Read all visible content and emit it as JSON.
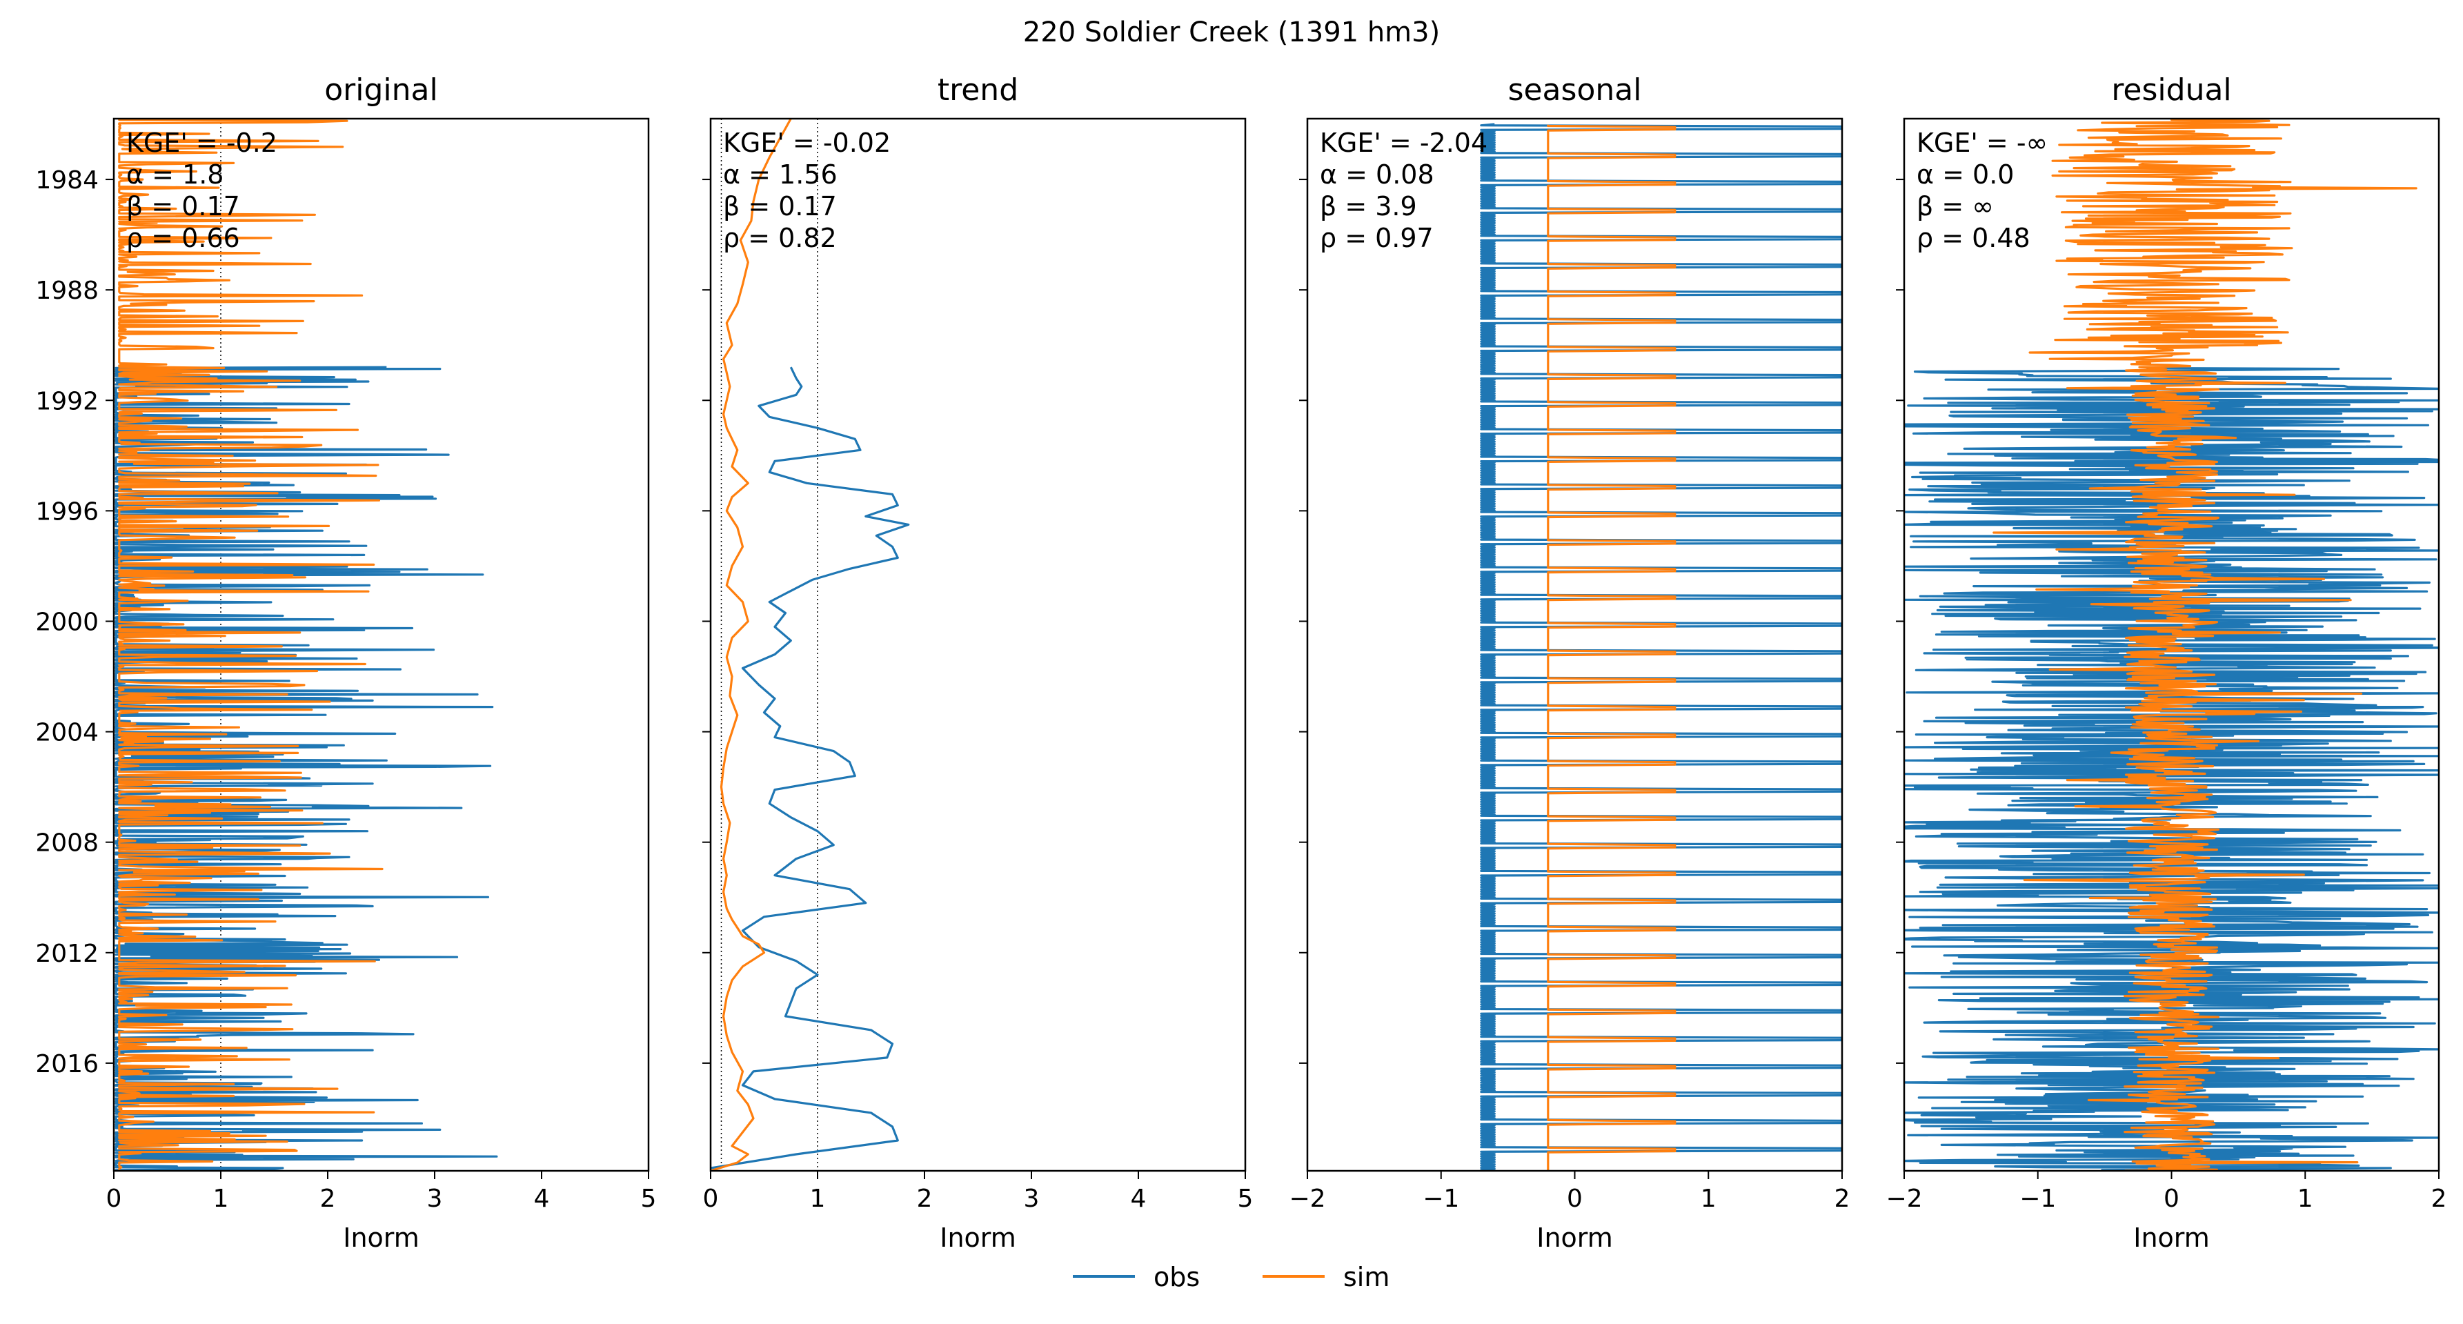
{
  "figure": {
    "suptitle": "220  Soldier Creek (1391 hm3)",
    "legend": {
      "placement": "bottom-center",
      "entries": [
        {
          "name": "obs",
          "color": "#1f77b4"
        },
        {
          "name": "sim",
          "color": "#ff7f0e"
        }
      ]
    }
  },
  "chart_data": [
    {
      "type": "line",
      "title": "original",
      "xlabel": "Inorm",
      "ylabel": "",
      "xlim": [
        0,
        5
      ],
      "xticks": [
        "0",
        "1",
        "2",
        "3",
        "4",
        "5"
      ],
      "ylim": [
        1981.8,
        2019.9
      ],
      "yticks": [
        "1984",
        "1988",
        "1992",
        "1996",
        "2000",
        "2004",
        "2008",
        "2012",
        "2016"
      ],
      "show_yticklabels": true,
      "reference_lines_x": [
        0,
        1
      ],
      "metrics": [
        "KGE' = -0.2",
        "α = 1.8",
        "β = 0.17",
        "ρ = 0.66"
      ],
      "series": []
    },
    {
      "type": "line",
      "title": "trend",
      "xlabel": "Inorm",
      "ylabel": "",
      "xlim": [
        0,
        5
      ],
      "xticks": [
        "0",
        "1",
        "2",
        "3",
        "4",
        "5"
      ],
      "ylim": [
        1981.8,
        2019.9
      ],
      "yticks": [
        "1984",
        "1988",
        "1992",
        "1996",
        "2000",
        "2004",
        "2008",
        "2012",
        "2016"
      ],
      "show_yticklabels": false,
      "reference_lines_x": [
        0,
        0.1,
        1
      ],
      "metrics": [
        "KGE' = -0.02",
        "α = 1.56",
        "β = 0.17",
        "ρ = 0.82"
      ],
      "series": [
        {
          "color": "#1f77b4",
          "x": [
            0.75,
            0.8,
            0.85,
            0.8,
            0.45,
            0.55,
            1.0,
            1.35,
            1.4,
            0.6,
            0.55,
            0.9,
            1.7,
            1.75,
            1.45,
            1.85,
            1.55,
            1.7,
            1.75,
            1.3,
            0.95,
            0.75,
            0.55,
            0.7,
            0.6,
            0.75,
            0.6,
            0.3,
            0.45,
            0.6,
            0.5,
            0.65,
            0.6,
            1.15,
            1.3,
            1.35,
            0.6,
            0.55,
            0.75,
            1.0,
            1.15,
            0.8,
            0.6,
            1.3,
            1.45,
            0.5,
            0.3,
            0.45,
            0.8,
            1.0,
            0.8,
            0.75,
            0.7,
            1.5,
            1.7,
            1.65,
            0.4,
            0.3,
            0.6,
            1.5,
            1.7,
            1.75,
            0.8,
            0.0
          ],
          "y": [
            1990.8,
            1991.2,
            1991.5,
            1991.8,
            1992.2,
            1992.6,
            1993.0,
            1993.4,
            1993.8,
            1994.2,
            1994.6,
            1995.0,
            1995.4,
            1995.8,
            1996.2,
            1996.5,
            1996.9,
            1997.3,
            1997.7,
            1998.1,
            1998.5,
            1998.9,
            1999.3,
            1999.7,
            2000.2,
            2000.7,
            2001.2,
            2001.7,
            2002.3,
            2002.8,
            2003.3,
            2003.8,
            2004.2,
            2004.7,
            2005.1,
            2005.6,
            2006.1,
            2006.6,
            2007.1,
            2007.6,
            2008.1,
            2008.6,
            2009.2,
            2009.7,
            2010.2,
            2010.7,
            2011.2,
            2011.8,
            2012.3,
            2012.8,
            2013.3,
            2013.8,
            2014.3,
            2014.8,
            2015.3,
            2015.8,
            2016.3,
            2016.8,
            2017.3,
            2017.8,
            2018.3,
            2018.8,
            2019.3,
            2019.8
          ]
        },
        {
          "color": "#ff7f0e",
          "x": [
            0.75,
            0.65,
            0.55,
            0.45,
            0.4,
            0.38,
            0.28,
            0.35,
            0.3,
            0.25,
            0.15,
            0.2,
            0.12,
            0.15,
            0.18,
            0.15,
            0.12,
            0.15,
            0.2,
            0.25,
            0.2,
            0.35,
            0.2,
            0.15,
            0.25,
            0.3,
            0.2,
            0.15,
            0.3,
            0.35,
            0.2,
            0.15,
            0.2,
            0.18,
            0.25,
            0.2,
            0.15,
            0.12,
            0.1,
            0.12,
            0.18,
            0.15,
            0.12,
            0.15,
            0.12,
            0.15,
            0.2,
            0.25,
            0.3,
            0.45,
            0.5,
            0.3,
            0.2,
            0.15,
            0.12,
            0.15,
            0.2,
            0.3,
            0.25,
            0.35,
            0.4,
            0.3,
            0.2,
            0.35,
            0.25,
            0.0
          ],
          "y": [
            1981.8,
            1982.5,
            1983.2,
            1984.0,
            1984.8,
            1985.5,
            1986.2,
            1987.0,
            1987.8,
            1988.5,
            1989.2,
            1990.0,
            1990.5,
            1991.0,
            1991.5,
            1992.0,
            1992.5,
            1993.0,
            1993.4,
            1993.8,
            1994.4,
            1995.0,
            1995.5,
            1996.0,
            1996.6,
            1997.3,
            1998.0,
            1998.7,
            1999.3,
            2000.0,
            2000.6,
            2001.3,
            2002.0,
            2002.7,
            2003.4,
            2004.0,
            2004.6,
            2005.3,
            2006.0,
            2006.6,
            2007.3,
            2008.0,
            2008.6,
            2009.2,
            2009.8,
            2010.4,
            2010.8,
            2011.1,
            2011.4,
            2011.7,
            2012.0,
            2012.5,
            2013.0,
            2013.6,
            2014.3,
            2015.0,
            2015.6,
            2016.3,
            2017.0,
            2017.5,
            2018.0,
            2018.5,
            2019.0,
            2019.3,
            2019.6,
            2019.9
          ]
        }
      ]
    },
    {
      "type": "line",
      "title": "seasonal",
      "xlabel": "Inorm",
      "ylabel": "",
      "xlim": [
        -2,
        2
      ],
      "xticks": [
        "−2",
        "−1",
        "0",
        "1",
        "2"
      ],
      "ylim": [
        1981.8,
        2019.9
      ],
      "yticks": [
        "1984",
        "1988",
        "1992",
        "1996",
        "2000",
        "2004",
        "2008",
        "2012",
        "2016"
      ],
      "show_yticklabels": false,
      "reference_lines_x": [],
      "metrics": [
        "KGE' = -2.04",
        "α = 0.08",
        "β = 3.9",
        "ρ = 0.97"
      ],
      "series": []
    },
    {
      "type": "line",
      "title": "residual",
      "xlabel": "Inorm",
      "ylabel": "",
      "xlim": [
        -2,
        2
      ],
      "xticks": [
        "−2",
        "−1",
        "0",
        "1",
        "2"
      ],
      "ylim": [
        1981.8,
        2019.9
      ],
      "yticks": [
        "1984",
        "1988",
        "1992",
        "1996",
        "2000",
        "2004",
        "2008",
        "2012",
        "2016"
      ],
      "show_yticklabels": false,
      "reference_lines_x": [],
      "metrics": [
        "KGE' = -∞",
        "α = 0.0",
        "β = ∞",
        "ρ = 0.48"
      ],
      "series": []
    }
  ]
}
